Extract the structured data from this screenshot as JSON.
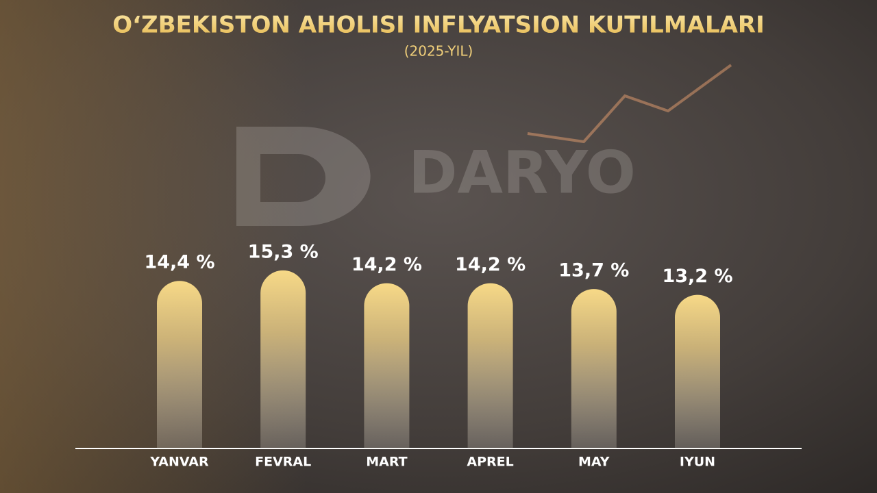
{
  "chart_data": {
    "type": "bar",
    "title": "O‘ZBEKISTON AHOLISI INFLYATSION KUTILMALARI",
    "subtitle": "(2025-YIL)",
    "watermark": "DARYO",
    "categories": [
      "YANVAR",
      "FEVRAL",
      "MART",
      "APREL",
      "MAY",
      "IYUN"
    ],
    "values": [
      14.4,
      15.3,
      14.2,
      14.2,
      13.7,
      13.2
    ],
    "value_labels": [
      "14,4 %",
      "15,3 %",
      "14,2 %",
      "14,2 %",
      "13,7 %",
      "13,2 %"
    ],
    "color": "#f5d57a"
  }
}
